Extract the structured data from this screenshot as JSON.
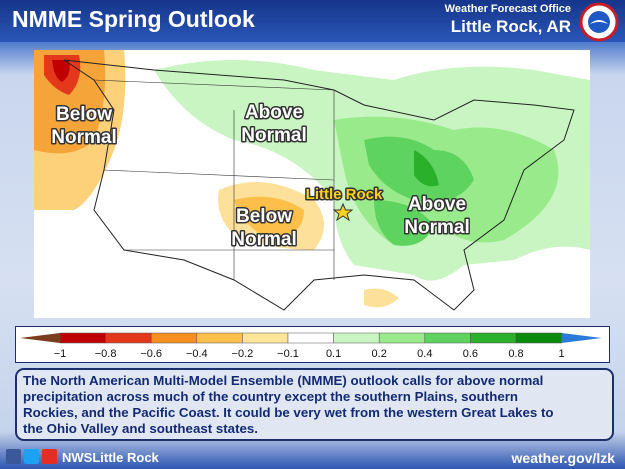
{
  "header": {
    "title": "NMME Spring Outlook",
    "office": "Weather Forecast Office",
    "city": "Little Rock, AR"
  },
  "map": {
    "labels": [
      [
        "Below",
        "Normal"
      ],
      [
        "Above",
        "Normal"
      ],
      [
        "Below",
        "Normal"
      ],
      [
        "Above",
        "Normal"
      ]
    ],
    "city": "Little Rock"
  },
  "legend": {
    "ticks": [
      "−1",
      "−0.8",
      "−0.6",
      "−0.4",
      "−0.2",
      "−0.1",
      "0.1",
      "0.2",
      "0.4",
      "0.6",
      "0.8",
      "1"
    ],
    "colors": [
      "#7a3d1e",
      "#c00000",
      "#e4381a",
      "#f59020",
      "#fcc04a",
      "#fde59a",
      "#ffffff",
      "#c9f5c2",
      "#99ea8a",
      "#5fd35f",
      "#2bb02b",
      "#0c8a0c",
      "#2a7ad8"
    ]
  },
  "description": [
    "The North American Multi-Model Ensemble (NMME) outlook calls for above normal",
    "precipitation across much of the country except the southern Plains, southern",
    "Rockies, and the Pacific Coast. It could be very wet from the western Great Lakes to",
    "the Ohio Valley and southeast states."
  ],
  "footer": {
    "handle": "NWSLittle Rock",
    "site": "weather.gov/lzk"
  }
}
